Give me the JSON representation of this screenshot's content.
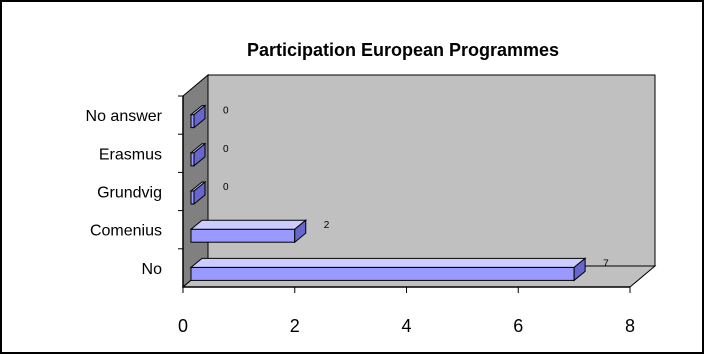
{
  "chart_data": {
    "type": "bar",
    "orientation": "horizontal",
    "style": "3d",
    "title": "Participation European Programmes",
    "xlabel": "",
    "ylabel": "",
    "categories": [
      "No answer",
      "Erasmus",
      "Grundvig",
      "Comenius",
      "No"
    ],
    "values": [
      0,
      0,
      0,
      2,
      7
    ],
    "data_labels": [
      "0",
      "0",
      "0",
      "2",
      "7"
    ],
    "xlim": [
      0,
      8
    ],
    "x_ticks": [
      "0",
      "2",
      "4",
      "6",
      "8"
    ],
    "grid": false,
    "legend": "none",
    "colors": {
      "bar_front": "#9999ff",
      "bar_top": "#ccccff",
      "bar_side": "#6666cc",
      "back_wall": "#c0c0c0",
      "side_wall": "#808080",
      "floor": "#c0c0c0"
    }
  }
}
